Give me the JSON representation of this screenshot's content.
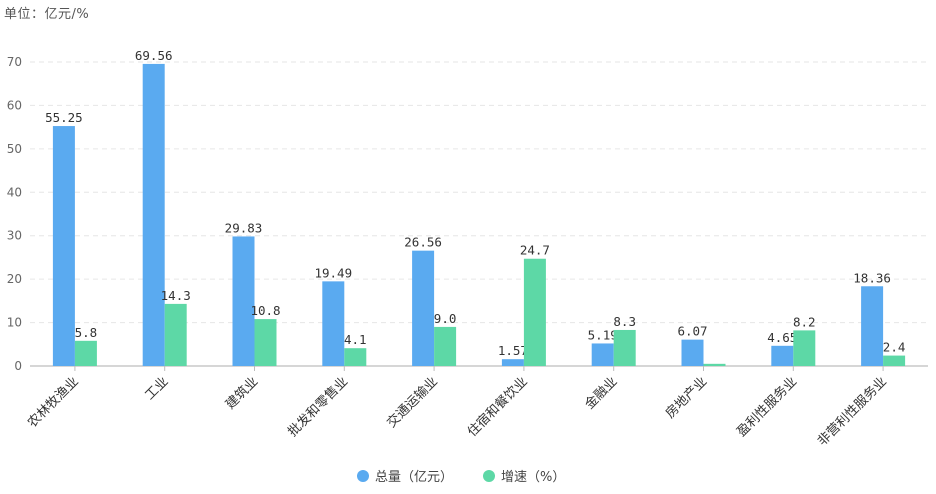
{
  "unit_label": "单位：亿元/%",
  "colors": {
    "total": "#5aaaf0",
    "growth": "#5dd8a6",
    "grid": "#e6e6e6",
    "axis": "#bdbdbd"
  },
  "legend": {
    "total_label": "总量（亿元）",
    "growth_label": "增速（%）"
  },
  "chart_data": {
    "type": "bar",
    "categories": [
      "农林牧渔业",
      "工业",
      "建筑业",
      "批发和零售业",
      "交通运输业",
      "住宿和餐饮业",
      "金融业",
      "房地产业",
      "盈利性服务业",
      "非营利性服务业"
    ],
    "series": [
      {
        "name": "总量（亿元）",
        "values": [
          55.25,
          69.56,
          29.83,
          19.49,
          26.56,
          1.57,
          5.19,
          6.07,
          4.65,
          18.36
        ],
        "labels": [
          "55.25",
          "69.56",
          "29.83",
          "19.49",
          "26.56",
          "1.57",
          "5.19",
          "6.07",
          "4.65",
          "18.36"
        ]
      },
      {
        "name": "增速（%）",
        "values": [
          5.8,
          14.3,
          10.8,
          4.1,
          9.0,
          24.7,
          8.3,
          0.5,
          8.2,
          2.4
        ],
        "labels": [
          "5.8",
          "14.3",
          "10.8",
          "4.1",
          "9.0",
          "24.7",
          "8.3",
          "",
          "8.2",
          "2.4"
        ]
      }
    ],
    "ylim": [
      0,
      70
    ],
    "yticks": [
      0,
      10,
      20,
      30,
      40,
      50,
      60,
      70
    ],
    "grid": true,
    "legend_position": "bottom-center"
  }
}
